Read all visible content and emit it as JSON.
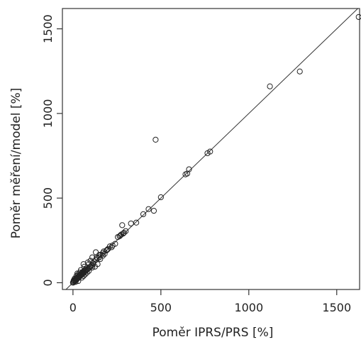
{
  "chart_data": {
    "type": "scatter",
    "title": "",
    "xlabel": "Poměr IPRS/PRS [%]",
    "ylabel": "Poměr měření/model [%]",
    "xlim": [
      -60,
      1630
    ],
    "ylim": [
      -40,
      1620
    ],
    "xticks": [
      0,
      500,
      1000,
      1500
    ],
    "yticks": [
      0,
      500,
      1000,
      1500
    ],
    "xtick_labels": [
      "0",
      "500",
      "1000",
      "1500"
    ],
    "ytick_labels": [
      "0",
      "500",
      "1000",
      "1500"
    ],
    "grid": false,
    "reference_line": {
      "type": "identity",
      "from": [
        -60,
        -60
      ],
      "to": [
        1630,
        1630
      ]
    },
    "colors": {
      "points": "#222222",
      "line": "#333333",
      "frame": "#333333"
    },
    "points": [
      [
        1625,
        1570
      ],
      [
        1290,
        1248
      ],
      [
        1120,
        1160
      ],
      [
        780,
        775
      ],
      [
        765,
        765
      ],
      [
        660,
        670
      ],
      [
        650,
        645
      ],
      [
        640,
        640
      ],
      [
        470,
        845
      ],
      [
        500,
        505
      ],
      [
        460,
        425
      ],
      [
        430,
        435
      ],
      [
        400,
        405
      ],
      [
        360,
        355
      ],
      [
        330,
        350
      ],
      [
        300,
        305
      ],
      [
        280,
        340
      ],
      [
        290,
        295
      ],
      [
        270,
        280
      ],
      [
        255,
        270
      ],
      [
        240,
        230
      ],
      [
        220,
        210
      ],
      [
        200,
        200
      ],
      [
        190,
        190
      ],
      [
        180,
        170
      ],
      [
        170,
        175
      ],
      [
        160,
        165
      ],
      [
        150,
        150
      ],
      [
        140,
        145
      ],
      [
        130,
        135
      ],
      [
        120,
        125
      ],
      [
        115,
        115
      ],
      [
        110,
        105
      ],
      [
        105,
        100
      ],
      [
        100,
        95
      ],
      [
        95,
        92
      ],
      [
        90,
        88
      ],
      [
        85,
        82
      ],
      [
        80,
        78
      ],
      [
        75,
        72
      ],
      [
        70,
        68
      ],
      [
        65,
        62
      ],
      [
        60,
        58
      ],
      [
        55,
        52
      ],
      [
        50,
        48
      ],
      [
        45,
        44
      ],
      [
        40,
        38
      ],
      [
        35,
        33
      ],
      [
        30,
        28
      ],
      [
        25,
        24
      ],
      [
        20,
        18
      ],
      [
        15,
        14
      ],
      [
        10,
        9
      ],
      [
        5,
        4
      ],
      [
        0,
        0
      ],
      [
        2,
        6
      ],
      [
        8,
        12
      ],
      [
        12,
        20
      ],
      [
        18,
        25
      ],
      [
        22,
        30
      ],
      [
        28,
        35
      ],
      [
        33,
        40
      ],
      [
        38,
        45
      ],
      [
        42,
        50
      ],
      [
        48,
        55
      ],
      [
        52,
        60
      ],
      [
        58,
        65
      ],
      [
        62,
        70
      ],
      [
        68,
        75
      ],
      [
        72,
        80
      ],
      [
        130,
        180
      ],
      [
        90,
        110
      ],
      [
        60,
        110
      ],
      [
        100,
        130
      ],
      [
        125,
        95
      ],
      [
        140,
        110
      ],
      [
        150,
        165
      ],
      [
        110,
        150
      ],
      [
        170,
        160
      ],
      [
        80,
        60
      ],
      [
        30,
        50
      ],
      [
        60,
        40
      ],
      [
        40,
        60
      ],
      [
        20,
        40
      ],
      [
        10,
        25
      ],
      [
        5,
        15
      ],
      [
        15,
        5
      ],
      [
        30,
        10
      ],
      [
        50,
        30
      ],
      [
        70,
        50
      ],
      [
        90,
        70
      ],
      [
        110,
        90
      ],
      [
        85,
        120
      ],
      [
        65,
        95
      ],
      [
        45,
        75
      ],
      [
        25,
        55
      ],
      [
        135,
        150
      ],
      [
        155,
        140
      ],
      [
        175,
        185
      ],
      [
        195,
        195
      ],
      [
        210,
        215
      ],
      [
        225,
        220
      ],
      [
        265,
        275
      ],
      [
        275,
        285
      ],
      [
        285,
        290
      ]
    ]
  }
}
